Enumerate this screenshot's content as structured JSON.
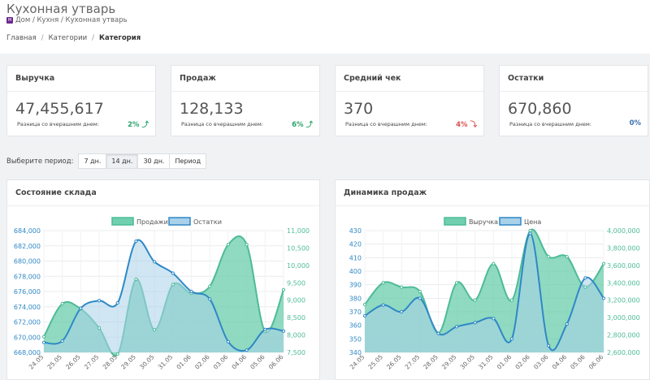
{
  "header": {
    "title": "Кухонная утварь",
    "path": "Дом / Кухня / Кухонная утварь",
    "favicon_letter": "M"
  },
  "breadcrumb": {
    "items": [
      "Главная",
      "Категории",
      "Категория"
    ],
    "separator": "/"
  },
  "cards": [
    {
      "title": "Выручка",
      "value": "47,455,617",
      "diff_label": "Разница со вчерашним днем:",
      "diff": "2% ⤴",
      "trend": "up"
    },
    {
      "title": "Продаж",
      "value": "128,133",
      "diff_label": "Разница со вчерашним днем:",
      "diff": "6% ⤴",
      "trend": "up"
    },
    {
      "title": "Средний чек",
      "value": "370",
      "diff_label": "Разница со вчерашним днем:",
      "diff": "4% ⤵",
      "trend": "down"
    },
    {
      "title": "Остатки",
      "value": "670,860",
      "diff_label": "Разница со вчерашним днем:",
      "diff": "0%",
      "trend": "neutral"
    }
  ],
  "period": {
    "label": "Выберите период:",
    "options": [
      "7 дн.",
      "14 дн.",
      "30 дн.",
      "Период"
    ],
    "selected": "14 дн."
  },
  "colors": {
    "fill_green": "#6fcfae",
    "line_green": "#4dbb98",
    "fill_blue": "#a9d1ea",
    "line_blue": "#2f88c6",
    "axis_left": "#2f88c6",
    "axis_right": "#4dbb98"
  },
  "panels": {
    "warehouse_title": "Состояние склада",
    "sales_title": "Динамика продаж"
  },
  "chart_data": [
    {
      "type": "area",
      "title": "Состояние склада",
      "categories": [
        "24.05",
        "25.05",
        "26.05",
        "27.05",
        "28.05",
        "29.05",
        "30.05",
        "31.05",
        "01.06",
        "02.06",
        "03.06",
        "04.06",
        "05.06",
        "06.06"
      ],
      "series": [
        {
          "name": "Продажи",
          "axis": "right",
          "values": [
            7950,
            8900,
            8750,
            8200,
            7450,
            9600,
            8150,
            9450,
            9200,
            9400,
            10600,
            10600,
            8100,
            9300
          ]
        },
        {
          "name": "Остатки",
          "axis": "left",
          "values": [
            669300,
            669500,
            673800,
            674800,
            674500,
            682600,
            679900,
            678400,
            676000,
            675000,
            669400,
            668300,
            671000,
            670800
          ]
        }
      ],
      "y_left": {
        "min": 668000,
        "max": 684000,
        "ticks": [
          "684,000",
          "682,000",
          "680,000",
          "678,000",
          "676,000",
          "674,000",
          "672,000",
          "670,000",
          "668,000"
        ]
      },
      "y_right": {
        "min": 7500,
        "max": 11000,
        "ticks": [
          "11,000",
          "10,500",
          "10,000",
          "9,500",
          "9,000",
          "8,500",
          "8,000",
          "7,500"
        ]
      },
      "legend": "top-center",
      "grid": true
    },
    {
      "type": "area",
      "title": "Динамика продаж",
      "categories": [
        "24.05",
        "25.05",
        "26.05",
        "27.05",
        "28.05",
        "29.05",
        "30.05",
        "31.05",
        "01.06",
        "02.06",
        "03.06",
        "04.06",
        "05.06",
        "06.06"
      ],
      "series": [
        {
          "name": "Выручка",
          "axis": "right",
          "values": [
            3150000,
            3400000,
            3350000,
            3300000,
            2820000,
            3400000,
            3200000,
            3620000,
            3200000,
            4000000,
            3700000,
            3700000,
            3350000,
            3620000
          ]
        },
        {
          "name": "Цена",
          "axis": "left",
          "values": [
            367,
            375,
            370,
            380,
            354,
            359,
            362,
            365,
            350,
            428,
            345,
            361,
            395,
            380
          ]
        }
      ],
      "y_left": {
        "min": 340,
        "max": 430,
        "ticks": [
          "430",
          "420",
          "410",
          "400",
          "390",
          "380",
          "370",
          "360",
          "350",
          "340"
        ]
      },
      "y_right": {
        "min": 2600000,
        "max": 4000000,
        "ticks": [
          "4,000,000",
          "3,800,000",
          "3,600,000",
          "3,400,000",
          "3,200,000",
          "3,000,000",
          "2,800,000",
          "2,600,000"
        ]
      },
      "legend": "top-center",
      "grid": true
    }
  ]
}
